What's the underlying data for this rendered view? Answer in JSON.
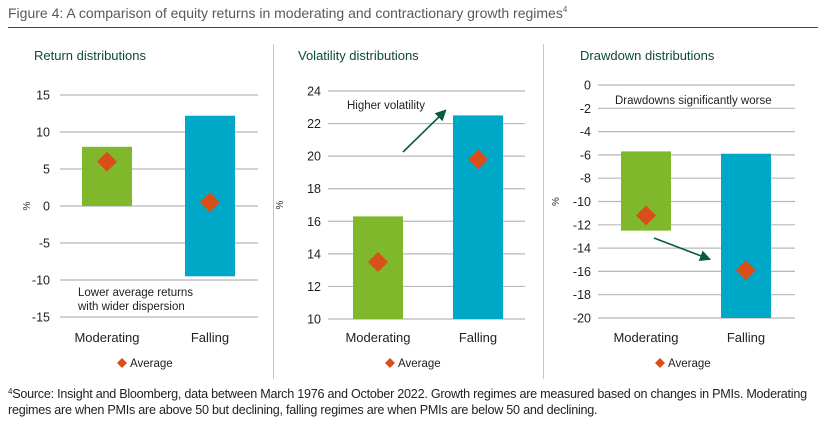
{
  "figure": {
    "title": "Figure 4: A comparison of equity returns in moderating and contractionary growth regimes",
    "title_superscript": "4"
  },
  "colors": {
    "moderating": "#7fb82a",
    "falling": "#00a8c8",
    "average": "#d94f1a",
    "arrow": "#0b5a3c",
    "grid": "#b8b8b8",
    "subtitle": "#0b4a3a"
  },
  "chart_data": [
    {
      "type": "bar",
      "subtype": "floating-range-with-average-marker",
      "title": "Return distributions",
      "ylabel": "%",
      "xlabel": "",
      "ylim": [
        -15,
        15
      ],
      "yticks": [
        15,
        10,
        5,
        0,
        -5,
        -10,
        -15
      ],
      "grid": true,
      "categories": [
        "Moderating",
        "Falling"
      ],
      "series": [
        {
          "name": "Range",
          "low": [
            0,
            -9.5
          ],
          "high": [
            8,
            12.2
          ]
        },
        {
          "name": "Average",
          "values": [
            6,
            0.5
          ]
        }
      ],
      "annotation": [
        "Lower average returns",
        "with wider dispersion"
      ],
      "arrow": false,
      "legend": {
        "position": "bottom",
        "entries": [
          "Average"
        ]
      }
    },
    {
      "type": "bar",
      "subtype": "floating-range-with-average-marker",
      "title": "Volatility distributions",
      "ylabel": "%",
      "xlabel": "",
      "ylim": [
        10,
        24
      ],
      "yticks": [
        24,
        22,
        20,
        18,
        16,
        14,
        12,
        10
      ],
      "grid": true,
      "categories": [
        "Moderating",
        "Falling"
      ],
      "series": [
        {
          "name": "Range",
          "low": [
            10,
            10
          ],
          "high": [
            16.3,
            22.5
          ]
        },
        {
          "name": "Average",
          "values": [
            13.5,
            19.8
          ]
        }
      ],
      "annotation": [
        "Higher volatility"
      ],
      "arrow": true,
      "legend": {
        "position": "bottom",
        "entries": [
          "Average"
        ]
      }
    },
    {
      "type": "bar",
      "subtype": "floating-range-with-average-marker",
      "title": "Drawdown distributions",
      "ylabel": "%",
      "xlabel": "",
      "ylim": [
        -20,
        0
      ],
      "yticks": [
        0,
        -2,
        -4,
        -6,
        -8,
        -10,
        -12,
        -14,
        -16,
        -18,
        -20
      ],
      "grid": true,
      "categories": [
        "Moderating",
        "Falling"
      ],
      "series": [
        {
          "name": "Range",
          "low": [
            -12.5,
            -20
          ],
          "high": [
            -5.7,
            -5.9
          ]
        },
        {
          "name": "Average",
          "values": [
            -11.2,
            -15.9
          ]
        }
      ],
      "annotation": [
        "Drawdowns significantly worse"
      ],
      "arrow": true,
      "legend": {
        "position": "bottom",
        "entries": [
          "Average"
        ]
      }
    }
  ],
  "footnote": {
    "marker": "4",
    "text": "Source: Insight and Bloomberg, data between March 1976 and October 2022. Growth regimes are measured based on changes in PMIs. Moderating regimes are when PMIs are above 50 but declining, falling regimes are when PMIs are below 50 and declining."
  }
}
